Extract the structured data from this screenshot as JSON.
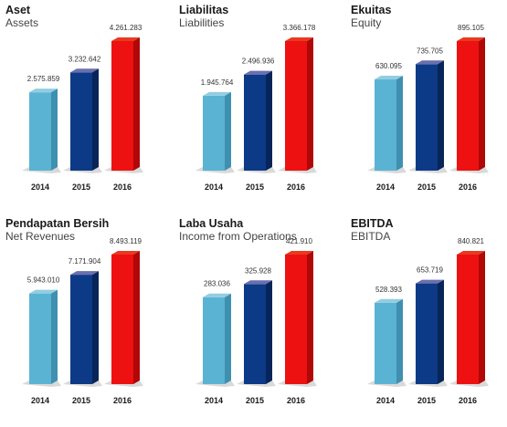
{
  "colors": {
    "2014": {
      "front": "#5bb3d3",
      "side": "#3f8fb0",
      "top": "#92cde2"
    },
    "2015": {
      "front": "#0d3a86",
      "side": "#072559",
      "top": "#6a6fb0"
    },
    "2016": {
      "front": "#ee1111",
      "side": "#b00707",
      "top": "#e83a1f"
    }
  },
  "chart_data": [
    {
      "type": "bar",
      "title": "Aset",
      "subtitle": "Assets",
      "categories": [
        "2014",
        "2015",
        "2016"
      ],
      "values": [
        2575859,
        3232642,
        4261283
      ],
      "labels": [
        "2.575.859",
        "3.232.642",
        "4.261.283"
      ]
    },
    {
      "type": "bar",
      "title": "Liabilitas",
      "subtitle": "Liabilities",
      "categories": [
        "2014",
        "2015",
        "2016"
      ],
      "values": [
        1945764,
        2496936,
        3366178
      ],
      "labels": [
        "1.945.764",
        "2.496.936",
        "3.366.178"
      ]
    },
    {
      "type": "bar",
      "title": "Ekuitas",
      "subtitle": "Equity",
      "categories": [
        "2014",
        "2015",
        "2016"
      ],
      "values": [
        630095,
        735705,
        895105
      ],
      "labels": [
        "630.095",
        "735.705",
        "895.105"
      ]
    },
    {
      "type": "bar",
      "title": "Pendapatan Bersih",
      "subtitle": "Net Revenues",
      "categories": [
        "2014",
        "2015",
        "2016"
      ],
      "values": [
        5943010,
        7171904,
        8493119
      ],
      "labels": [
        "5.943.010",
        "7.171.904",
        "8.493.119"
      ]
    },
    {
      "type": "bar",
      "title": "Laba Usaha",
      "subtitle": "Income from Operations",
      "categories": [
        "2014",
        "2015",
        "2016"
      ],
      "values": [
        283036,
        325928,
        421910
      ],
      "labels": [
        "283.036",
        "325.928",
        "421.910"
      ]
    },
    {
      "type": "bar",
      "title": "EBITDA",
      "subtitle": "EBITDA",
      "categories": [
        "2014",
        "2015",
        "2016"
      ],
      "values": [
        528393,
        653719,
        840821
      ],
      "labels": [
        "528.393",
        "653.719",
        "840.821"
      ]
    }
  ]
}
